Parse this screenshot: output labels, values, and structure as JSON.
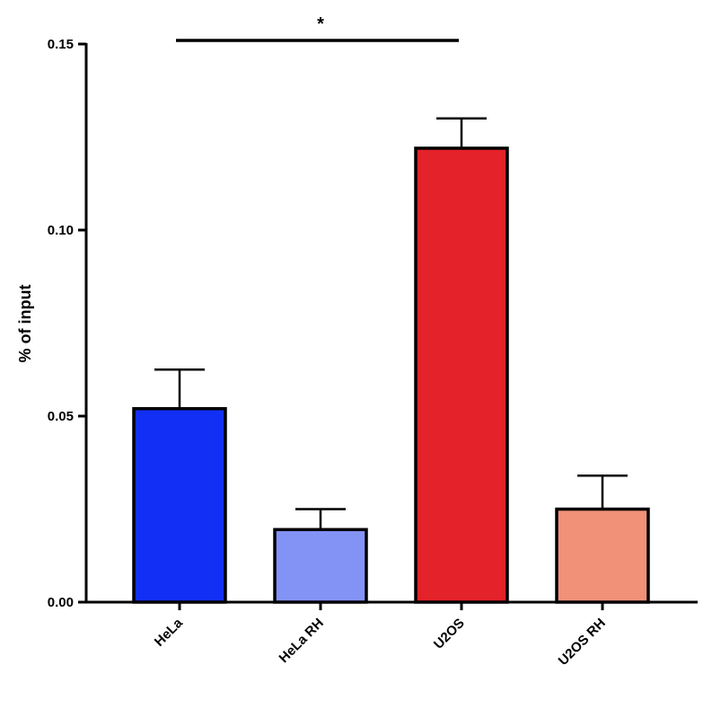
{
  "chart_data": {
    "type": "bar",
    "categories": [
      "HeLa",
      "HeLa RH",
      "U2OS",
      "U2OS RH"
    ],
    "values": [
      0.052,
      0.0195,
      0.122,
      0.025
    ],
    "errors": [
      0.0105,
      0.0055,
      0.008,
      0.009
    ],
    "colors": [
      "#1230F5",
      "#8393F5",
      "#E42229",
      "#F09178"
    ],
    "ylabel": "% of input",
    "xlabel": "",
    "title": "",
    "ylim": [
      0,
      0.15
    ],
    "yticks": [
      {
        "value": 0,
        "label": "0.00"
      },
      {
        "value": 0.05,
        "label": "0.05"
      },
      {
        "value": 0.1,
        "label": "0.10"
      },
      {
        "value": 0.15,
        "label": "0.15"
      }
    ],
    "significance": {
      "from": "HeLa",
      "to": "U2OS",
      "label": "*"
    },
    "grid": false
  }
}
